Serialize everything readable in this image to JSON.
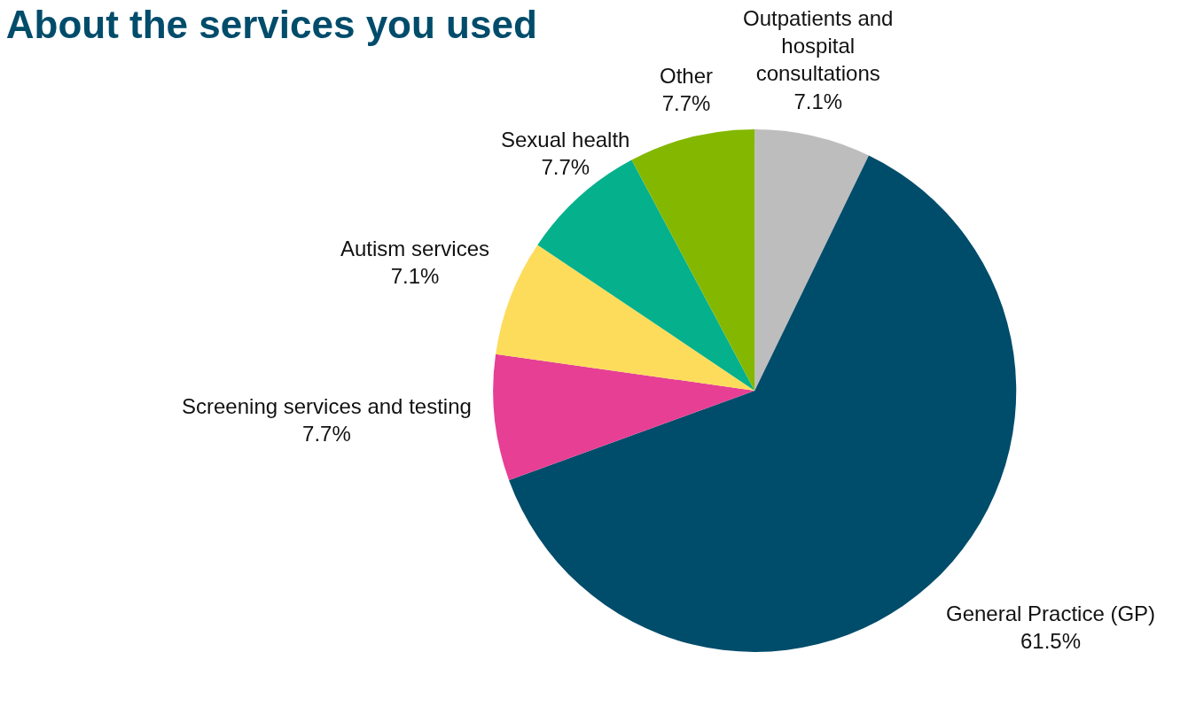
{
  "chart_data": {
    "type": "pie",
    "title": "About the services you used",
    "categories": [
      "Outpatients and hospital consultations",
      "General Practice (GP)",
      "Screening services and testing",
      "Autism services",
      "Sexual health",
      "Other"
    ],
    "values": [
      7.1,
      61.5,
      7.7,
      7.1,
      7.7,
      7.7
    ],
    "value_labels": [
      "7.1%",
      "61.5%",
      "7.7%",
      "7.1%",
      "7.7%",
      "7.7%"
    ],
    "colors": [
      "#bdbdbd",
      "#004c6b",
      "#e63f94",
      "#fddc5c",
      "#05b08c",
      "#84b800"
    ],
    "legend": false
  }
}
